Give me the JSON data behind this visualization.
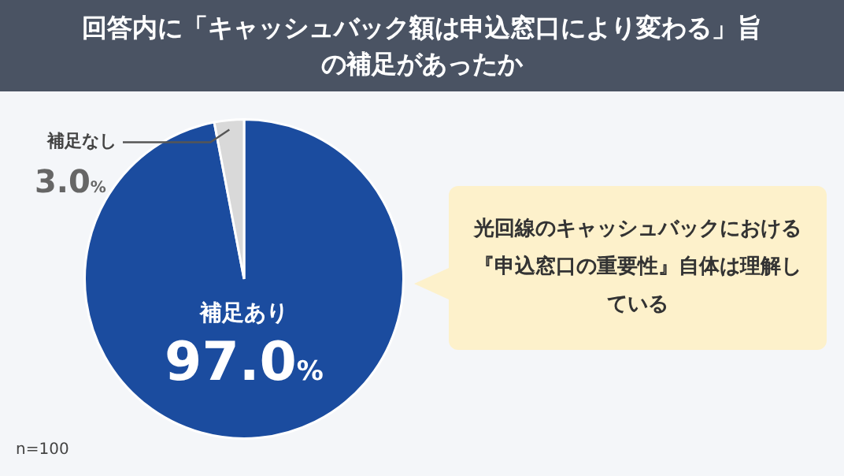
{
  "chart_data": {
    "type": "pie",
    "title": "回答内に「キャッシュバック額は申込窓口により変わる」旨の補足があったか",
    "categories": [
      "補足あり",
      "補足なし"
    ],
    "values": [
      97.0,
      3.0
    ],
    "colors": [
      "#1b4c9f",
      "#d9d9d9"
    ],
    "value_labels": [
      "97.0%",
      "3.0%"
    ],
    "legend": false,
    "annotations": [
      "光回線のキャッシュバックにおける『申込窓口の重要性』自体は理解している",
      "n=100"
    ]
  }
}
